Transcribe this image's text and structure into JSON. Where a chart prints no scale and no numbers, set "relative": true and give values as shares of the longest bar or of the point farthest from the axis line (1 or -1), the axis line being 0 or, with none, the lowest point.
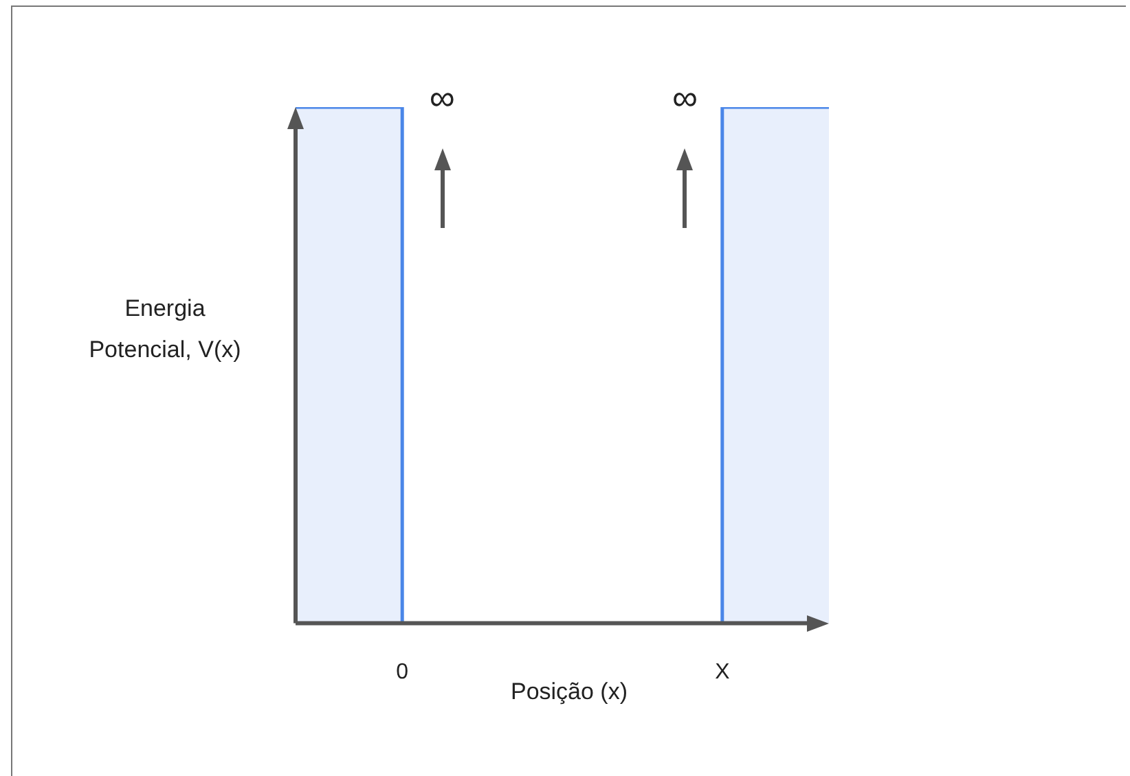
{
  "chart_data": {
    "type": "step",
    "relative": true,
    "xlabel": "Posição (x)",
    "ylabel": "Energia Potencial, V(x)",
    "categories": [
      null,
      "0",
      null,
      null,
      "X",
      null
    ],
    "series": [
      {
        "color": "#4a86e8",
        "values": [
          1,
          0,
          0,
          0,
          1,
          1
        ]
      }
    ],
    "annotations": [
      "∞",
      "∞"
    ],
    "legend": false,
    "marker": "none",
    "line_style": "solid"
  }
}
